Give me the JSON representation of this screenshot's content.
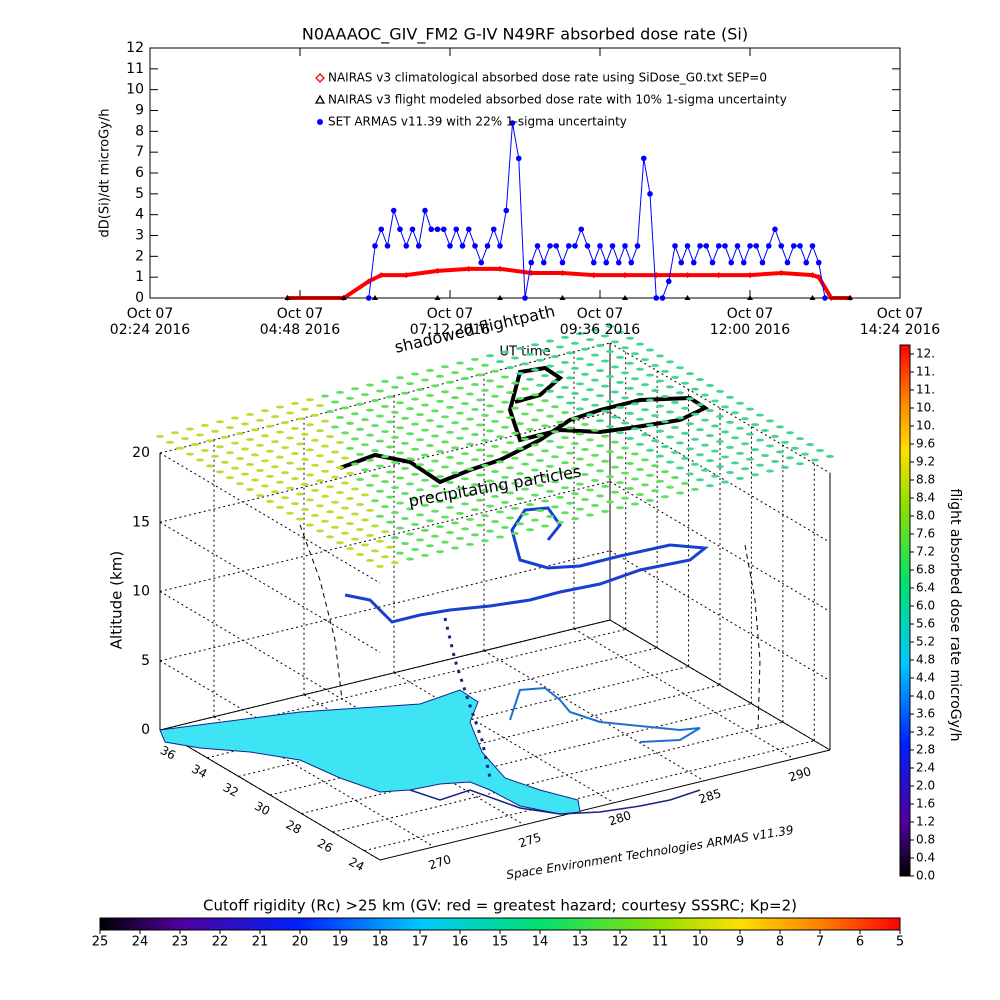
{
  "chart_data": [
    {
      "type": "line",
      "title": "N0AAAOC_GIV_FM2 G-IV    N49RF  absorbed dose rate (Si)",
      "ylabel": "dD(Si)/dt microGy/h",
      "xlabel": "UT time",
      "xlim": [
        2.4,
        14.4
      ],
      "xticks": [
        {
          "value": 2.4,
          "label": "Oct 07\n02:24 2016"
        },
        {
          "value": 4.8,
          "label": "Oct 07\n04:48 2016"
        },
        {
          "value": 7.2,
          "label": "Oct 07\n07:12 2016"
        },
        {
          "value": 9.6,
          "label": "Oct 07\n09:36 2016"
        },
        {
          "value": 12,
          "label": "Oct 07\n12:00 2016"
        },
        {
          "value": 14.4,
          "label": "Oct 07\n14:24 2016"
        }
      ],
      "ylim": [
        0,
        12
      ],
      "yticks": [
        0,
        1,
        2,
        3,
        4,
        5,
        6,
        7,
        8,
        9,
        10,
        11,
        12
      ],
      "series": [
        {
          "name": "NAIRAS v3 climatological absorbed dose rate using SiDose_G0.txt SEP=0",
          "color": "#ff0000",
          "marker": "diamond",
          "x": [
            4.6,
            5.5,
            5.9,
            6.1,
            6.5,
            7.0,
            7.5,
            8.0,
            8.5,
            9.0,
            9.5,
            10.0,
            10.5,
            11.0,
            11.5,
            12.0,
            12.5,
            13.0,
            13.1,
            13.3,
            13.6
          ],
          "values": [
            0,
            0,
            0.8,
            1.1,
            1.1,
            1.3,
            1.4,
            1.4,
            1.2,
            1.2,
            1.1,
            1.1,
            1.1,
            1.1,
            1.1,
            1.1,
            1.2,
            1.1,
            1.0,
            0,
            0
          ]
        },
        {
          "name": "NAIRAS v3 flight modeled absorbed dose rate with 10% 1-sigma uncertainty",
          "color": "#000000",
          "marker": "triangle",
          "x": [
            4.6,
            5.5,
            6.0,
            7.0,
            8.0,
            9.0,
            10.0,
            11.0,
            12.0,
            13.0,
            13.6
          ],
          "values": [
            0,
            0,
            0,
            0,
            0,
            0,
            0,
            0,
            0,
            0,
            0
          ]
        },
        {
          "name": "SET ARMAS v11.39 with 22% 1-sigma uncertainty",
          "color": "#0000ff",
          "marker": "circle",
          "x": [
            5.9,
            6.0,
            6.1,
            6.2,
            6.3,
            6.4,
            6.5,
            6.6,
            6.7,
            6.8,
            6.9,
            7.0,
            7.1,
            7.2,
            7.3,
            7.4,
            7.5,
            7.6,
            7.7,
            7.8,
            7.9,
            8.0,
            8.1,
            8.2,
            8.3,
            8.4,
            8.5,
            8.6,
            8.7,
            8.8,
            8.9,
            9.0,
            9.1,
            9.2,
            9.3,
            9.4,
            9.5,
            9.6,
            9.7,
            9.8,
            9.9,
            10.0,
            10.1,
            10.2,
            10.3,
            10.4,
            10.5,
            10.6,
            10.7,
            10.8,
            10.9,
            11.0,
            11.1,
            11.2,
            11.3,
            11.4,
            11.5,
            11.6,
            11.7,
            11.8,
            11.9,
            12.0,
            12.1,
            12.2,
            12.3,
            12.4,
            12.5,
            12.6,
            12.7,
            12.8,
            12.9,
            13.0,
            13.1,
            13.2
          ],
          "values": [
            0,
            2.5,
            3.3,
            2.5,
            4.2,
            3.3,
            2.5,
            3.3,
            2.5,
            4.2,
            3.3,
            3.3,
            3.3,
            2.5,
            3.3,
            2.5,
            3.3,
            2.5,
            1.7,
            2.5,
            3.3,
            2.5,
            4.2,
            8.4,
            6.7,
            0,
            1.7,
            2.5,
            1.7,
            2.5,
            2.5,
            1.7,
            2.5,
            2.5,
            3.3,
            2.5,
            1.7,
            2.5,
            1.7,
            2.5,
            1.7,
            2.5,
            1.7,
            2.5,
            6.7,
            5.0,
            0,
            0,
            0.8,
            2.5,
            1.7,
            2.5,
            1.7,
            2.5,
            2.5,
            1.7,
            2.5,
            2.5,
            1.7,
            2.5,
            1.7,
            2.5,
            2.5,
            1.7,
            2.5,
            3.3,
            2.5,
            1.7,
            2.5,
            2.5,
            1.7,
            2.5,
            1.7,
            0
          ]
        }
      ]
    },
    {
      "type": "surface3d",
      "zlabel": "Altitude (km)",
      "zlim": [
        0,
        20
      ],
      "zticks": [
        0,
        5,
        10,
        15,
        20
      ],
      "ylim": [
        37,
        23
      ],
      "yticks": [
        36,
        34,
        32,
        30,
        28,
        26,
        24
      ],
      "xlim": [
        267,
        292
      ],
      "xticks": [
        270,
        275,
        280,
        285,
        290
      ],
      "annotations": [
        "shadowed flightpath",
        "precipitating particles",
        "Space Environment Technologies ARMAS v11.39"
      ]
    },
    {
      "type": "colorbar",
      "orientation": "vertical",
      "label": "flight absorbed dose rate microGy/h",
      "lim": [
        0,
        11.8
      ],
      "ticks": [
        {
          "value": 0,
          "label": "0.0"
        },
        0.4,
        0.8,
        1.2,
        1.6,
        {
          "value": 2,
          "label": "2.0"
        },
        2.4,
        2.8,
        3.2,
        3.6,
        {
          "value": 4,
          "label": "4.0"
        },
        4.4,
        4.8,
        5.2,
        5.6,
        {
          "value": 6,
          "label": "6.0"
        },
        6.4,
        6.8,
        7.2,
        7.6,
        {
          "value": 8,
          "label": "8.0"
        },
        8.4,
        8.8,
        9.2,
        9.6,
        {
          "value": 10,
          "label": "10."
        },
        {
          "value": 10.4,
          "label": "10."
        },
        {
          "value": 10.8,
          "label": "11."
        },
        {
          "value": 11.2,
          "label": "11."
        },
        {
          "value": 11.6,
          "label": "12."
        }
      ]
    },
    {
      "type": "colorbar",
      "orientation": "horizontal",
      "title": "Cutoff rigidity (Rc) >25 km (GV: red = greatest hazard; courtesy SSSRC; Kp=2)",
      "lim": [
        25,
        5
      ],
      "ticks": [
        25,
        24,
        23,
        22,
        21,
        20,
        19,
        18,
        17,
        16,
        15,
        14,
        13,
        12,
        11,
        10,
        9,
        8,
        7,
        6,
        5
      ]
    }
  ]
}
